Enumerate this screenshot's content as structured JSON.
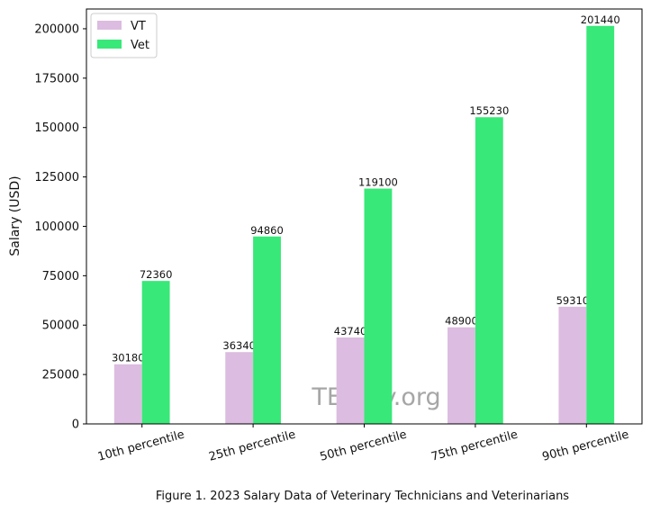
{
  "chart_data": {
    "type": "bar",
    "categories": [
      "10th percentile",
      "25th percentile",
      "50th percentile",
      "75th percentile",
      "90th percentile"
    ],
    "series": [
      {
        "name": "VT",
        "values": [
          30180,
          36340,
          43740,
          48900,
          59310
        ],
        "color": "#dcbce0"
      },
      {
        "name": "Vet",
        "values": [
          72360,
          94860,
          119100,
          155230,
          201440
        ],
        "color": "#38e878"
      }
    ],
    "ylabel": "Salary (USD)",
    "xlabel": "",
    "ylim": [
      0,
      210000
    ],
    "yticks": [
      0,
      25000,
      50000,
      75000,
      100000,
      125000,
      150000,
      175000,
      200000
    ],
    "legend": "top-left",
    "grid": false,
    "watermark": "TEssay.org"
  },
  "caption": "Figure 1. 2023 Salary Data of Veterinary Technicians and Veterinarians"
}
